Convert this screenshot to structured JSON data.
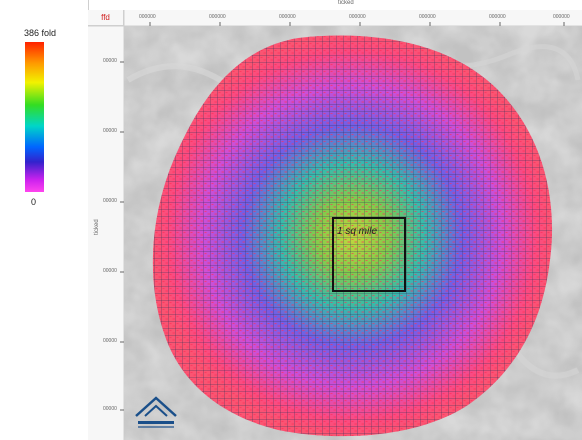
{
  "legend": {
    "max_label": "386 fold",
    "min_label": "0"
  },
  "ruler": {
    "corner_label": "ffd",
    "top_title": "ticked",
    "side_title": "ticked",
    "top_ticks": [
      "000000",
      "000000",
      "000000",
      "000000",
      "000000",
      "000000",
      "000000"
    ],
    "side_ticks": [
      "00000",
      "00000",
      "00000",
      "00000",
      "00000",
      "00000"
    ]
  },
  "map": {
    "inset_box_label": "1 sq mile",
    "colors": {
      "outer": "#ff3366",
      "mid": "#8844ff",
      "inner": "#22ccaa",
      "core": "#aadd33",
      "terrain": "#bdbdbd"
    }
  },
  "logo": {
    "icon": "mountain-logo-icon"
  }
}
